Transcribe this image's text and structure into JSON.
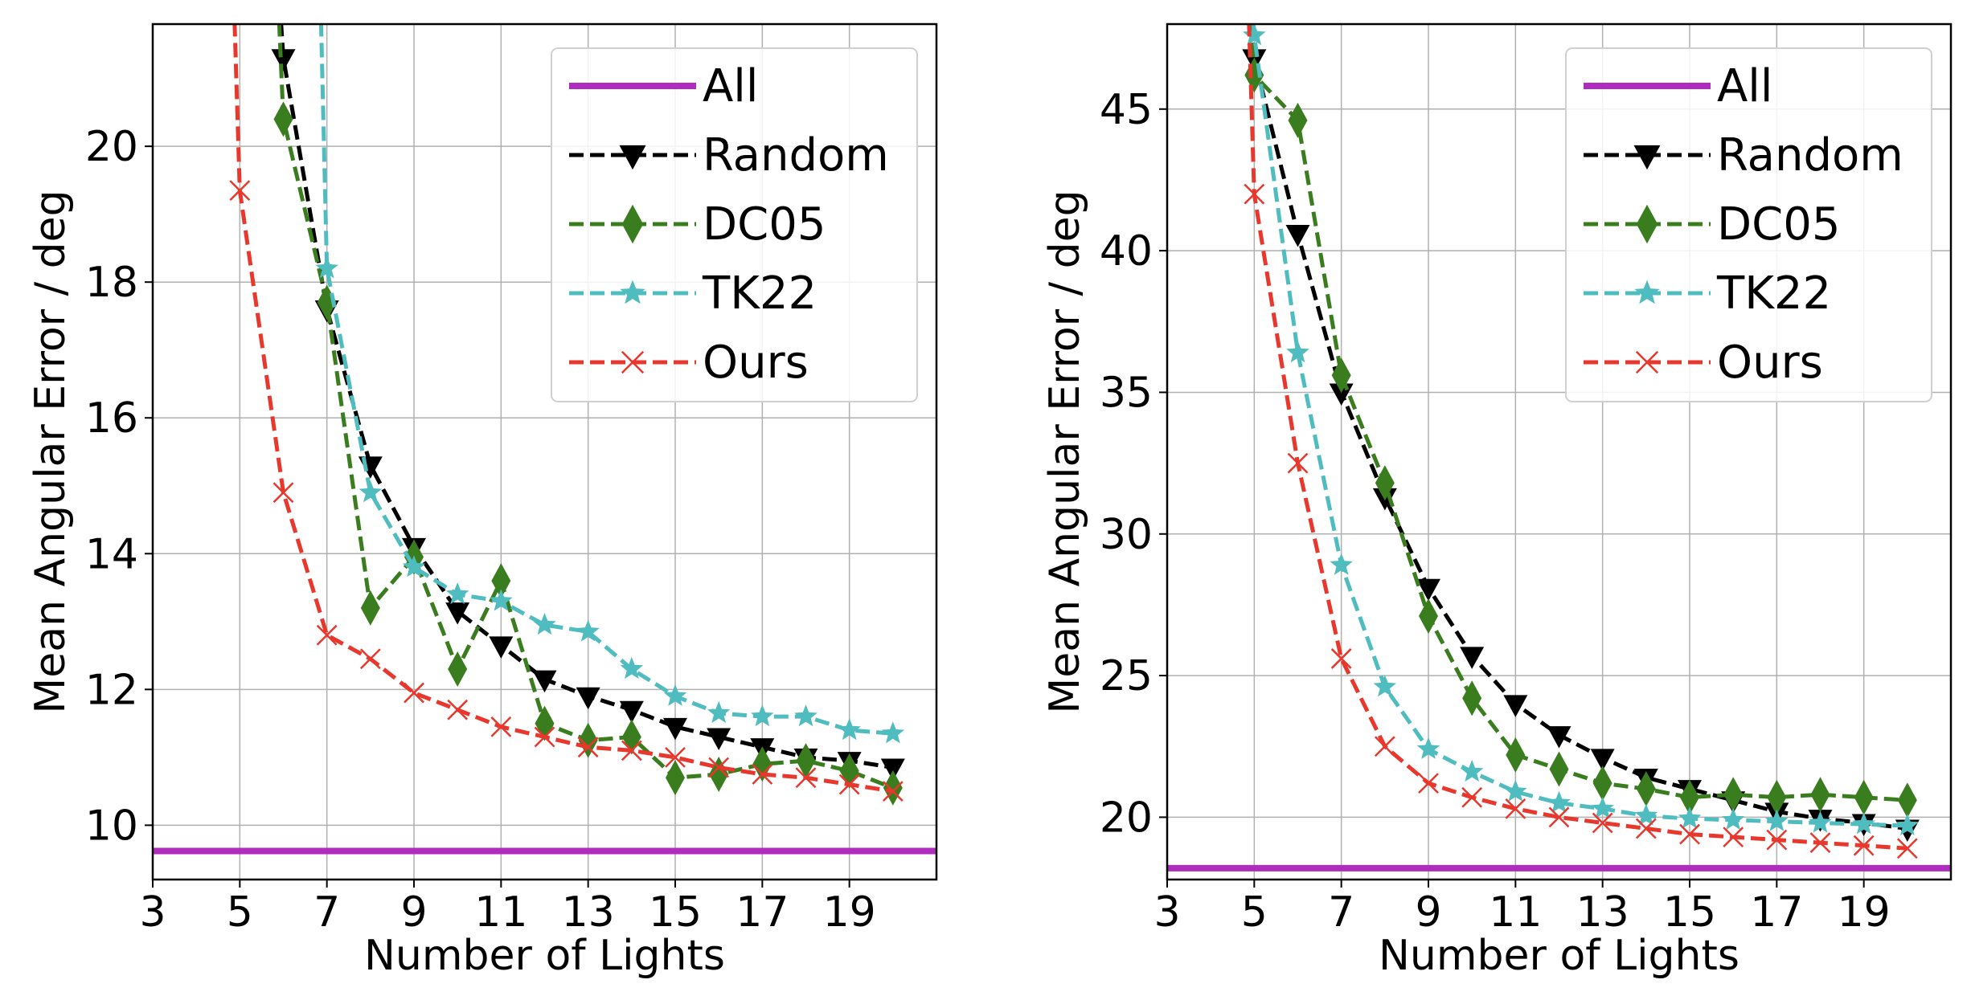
{
  "chart_data": [
    {
      "type": "line",
      "xlabel": "Number of Lights",
      "ylabel": "Mean Angular Error / deg",
      "xlim": [
        3,
        21
      ],
      "ylim": [
        9.2,
        21.8
      ],
      "xticks": [
        "3",
        "5",
        "7",
        "9",
        "11",
        "13",
        "15",
        "17",
        "19"
      ],
      "yticks": [
        "10",
        "12",
        "14",
        "16",
        "18",
        "20"
      ],
      "grid": true,
      "legend_position": "top-right",
      "hline": {
        "name": "All",
        "y": 9.62,
        "color": "#b02cbf"
      },
      "series": [
        {
          "name": "Random",
          "color": "#000000",
          "marker": "triangle-down",
          "x": [
            6,
            7,
            8,
            9,
            10,
            11,
            12,
            13,
            14,
            15,
            16,
            17,
            18,
            19,
            20
          ],
          "values": [
            21.3,
            17.6,
            15.3,
            14.1,
            13.15,
            12.65,
            12.15,
            11.9,
            11.7,
            11.45,
            11.3,
            11.15,
            11.0,
            10.95,
            10.85
          ]
        },
        {
          "name": "DC05",
          "color": "#3a7d1e",
          "marker": "diamond",
          "x": [
            6,
            7,
            8,
            9,
            10,
            11,
            12,
            13,
            14,
            15,
            16,
            17,
            18,
            19,
            20
          ],
          "values": [
            20.4,
            17.7,
            13.2,
            13.95,
            12.3,
            13.6,
            11.5,
            11.25,
            11.3,
            10.7,
            10.75,
            10.9,
            10.95,
            10.8,
            10.55
          ]
        },
        {
          "name": "TK22",
          "color": "#4fbcc0",
          "marker": "star",
          "x": [
            7,
            8,
            9,
            10,
            11,
            12,
            13,
            14,
            15,
            16,
            17,
            18,
            19,
            20
          ],
          "values": [
            18.2,
            14.9,
            13.8,
            13.4,
            13.3,
            12.95,
            12.85,
            12.3,
            11.9,
            11.65,
            11.6,
            11.6,
            11.4,
            11.35
          ]
        },
        {
          "name": "Ours",
          "color": "#e8372c",
          "marker": "x",
          "x": [
            5,
            6,
            7,
            8,
            9,
            10,
            11,
            12,
            13,
            14,
            15,
            16,
            17,
            18,
            19,
            20
          ],
          "values": [
            19.35,
            14.9,
            12.8,
            12.45,
            11.95,
            11.7,
            11.45,
            11.3,
            11.15,
            11.1,
            11.0,
            10.85,
            10.75,
            10.7,
            10.6,
            10.5
          ]
        }
      ]
    },
    {
      "type": "line",
      "xlabel": "Number of Lights",
      "ylabel": "Mean Angular Error / deg",
      "xlim": [
        3,
        21
      ],
      "ylim": [
        17.8,
        48
      ],
      "xticks": [
        "3",
        "5",
        "7",
        "9",
        "11",
        "13",
        "15",
        "17",
        "19"
      ],
      "yticks": [
        "20",
        "25",
        "30",
        "35",
        "40",
        "45"
      ],
      "grid": true,
      "legend_position": "top-right",
      "hline": {
        "name": "All",
        "y": 18.2,
        "color": "#b02cbf"
      },
      "series": [
        {
          "name": "Random",
          "color": "#000000",
          "marker": "triangle-down",
          "x": [
            5,
            6,
            7,
            8,
            9,
            10,
            11,
            12,
            13,
            14,
            15,
            16,
            17,
            18,
            19,
            20
          ],
          "values": [
            46.8,
            40.6,
            35.0,
            31.3,
            28.1,
            25.7,
            24.0,
            22.9,
            22.1,
            21.4,
            21.0,
            20.6,
            20.2,
            19.95,
            19.8,
            19.6
          ]
        },
        {
          "name": "DC05",
          "color": "#3a7d1e",
          "marker": "diamond",
          "x": [
            5,
            6,
            7,
            8,
            9,
            10,
            11,
            12,
            13,
            14,
            15,
            16,
            17,
            18,
            19,
            20
          ],
          "values": [
            46.2,
            44.6,
            35.6,
            31.8,
            27.1,
            24.2,
            22.2,
            21.7,
            21.2,
            21.0,
            20.7,
            20.8,
            20.7,
            20.8,
            20.7,
            20.6
          ]
        },
        {
          "name": "TK22",
          "color": "#4fbcc0",
          "marker": "star",
          "x": [
            5,
            6,
            7,
            8,
            9,
            10,
            11,
            12,
            13,
            14,
            15,
            16,
            17,
            18,
            19,
            20
          ],
          "values": [
            47.6,
            36.4,
            28.9,
            24.6,
            22.4,
            21.6,
            20.9,
            20.5,
            20.3,
            20.05,
            19.95,
            19.9,
            19.85,
            19.8,
            19.75,
            19.7
          ]
        },
        {
          "name": "Ours",
          "color": "#e8372c",
          "marker": "x",
          "x": [
            5,
            6,
            7,
            8,
            9,
            10,
            11,
            12,
            13,
            14,
            15,
            16,
            17,
            18,
            19,
            20
          ],
          "values": [
            42.0,
            32.5,
            25.6,
            22.5,
            21.2,
            20.7,
            20.3,
            20.0,
            19.8,
            19.6,
            19.4,
            19.3,
            19.2,
            19.1,
            19.0,
            18.9
          ]
        }
      ]
    }
  ],
  "legend_order": [
    "All",
    "Random",
    "DC05",
    "TK22",
    "Ours"
  ]
}
